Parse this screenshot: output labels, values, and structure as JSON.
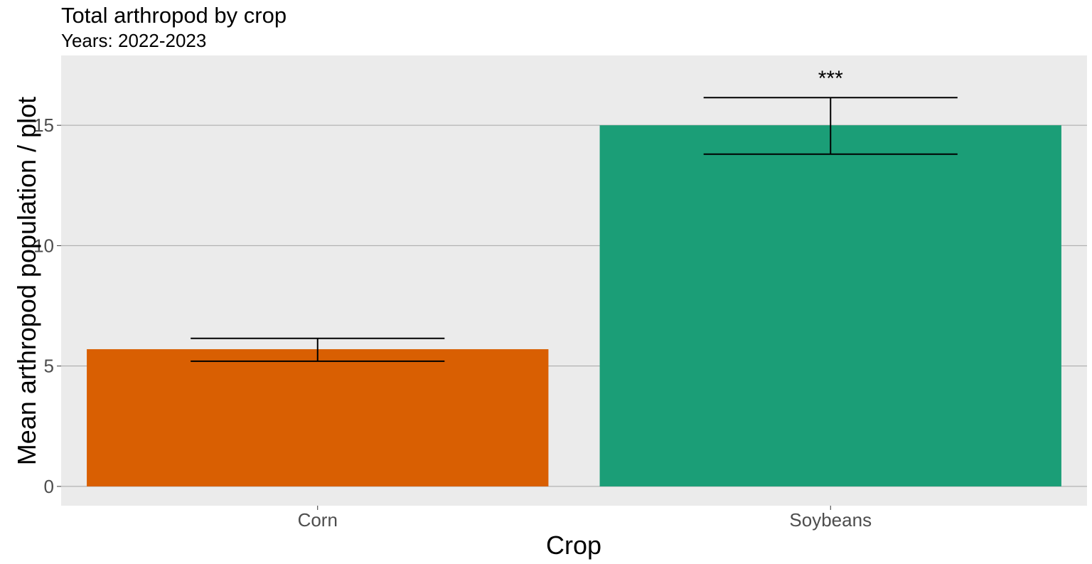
{
  "chart_data": {
    "type": "bar",
    "title": "Total arthropod by crop",
    "subtitle": "Years: 2022-2023",
    "xlabel": "Crop",
    "ylabel": "Mean arthropod population / plot",
    "categories": [
      "Corn",
      "Soybeans"
    ],
    "values": [
      5.7,
      15.0
    ],
    "error_low": [
      5.2,
      13.8
    ],
    "error_high": [
      6.15,
      16.15
    ],
    "annotations": [
      "",
      "***"
    ],
    "colors": [
      "#d95f02",
      "#1b9e77"
    ],
    "ylim": [
      -0.8,
      17.9
    ],
    "yticks": [
      0,
      5,
      10,
      15
    ],
    "ytick_labels": [
      "0",
      "5",
      "10",
      "15"
    ],
    "grid": true,
    "panel_background": "#ebebeb",
    "grid_color": "#a6a6a6"
  }
}
